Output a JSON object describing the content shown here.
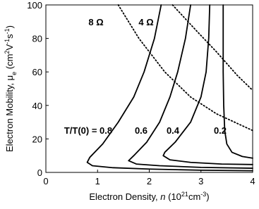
{
  "chart_data": {
    "type": "line",
    "x_label": [
      "Electron Density, ",
      "n",
      " (10",
      "21",
      "cm",
      "-3",
      ")"
    ],
    "y_label": [
      "Electron Mobility, ",
      "μ",
      "e",
      " (cm",
      "2",
      "V",
      "-1",
      "s",
      "-1",
      ")"
    ],
    "xlim": [
      0,
      4
    ],
    "ylim": [
      0,
      100
    ],
    "xticks": [
      0,
      1,
      2,
      3,
      4
    ],
    "yticks": [
      0,
      20,
      40,
      60,
      80,
      100
    ],
    "grid": false,
    "color": "#000000",
    "series": [
      {
        "name": "T/T(0) = 0.8",
        "style": "solid",
        "x": [
          2.23,
          2.1,
          1.9,
          1.7,
          1.4,
          1.1,
          0.85,
          0.8,
          0.9,
          1.3,
          2,
          3,
          4
        ],
        "values": [
          100,
          80,
          60,
          45,
          30,
          17,
          9,
          6,
          4,
          2.8,
          2,
          1.3,
          1
        ]
      },
      {
        "name": "0.6",
        "style": "solid",
        "x": [
          2.8,
          2.7,
          2.55,
          2.4,
          2.2,
          1.95,
          1.7,
          1.6,
          1.75,
          2.2,
          3,
          4
        ],
        "values": [
          100,
          80,
          60,
          45,
          30,
          18,
          10,
          7,
          5,
          4,
          3,
          2.5
        ]
      },
      {
        "name": "0.4",
        "style": "solid",
        "x": [
          3.17,
          3.15,
          3.1,
          3.0,
          2.8,
          2.5,
          2.3,
          2.27,
          2.4,
          2.8,
          3.4,
          4
        ],
        "values": [
          100,
          80,
          60,
          45,
          30,
          18,
          12,
          10,
          7.5,
          6,
          5,
          4.7
        ]
      },
      {
        "name": "0.2",
        "style": "solid",
        "x": [
          3.43,
          3.43,
          3.44,
          3.46,
          3.5,
          3.6,
          3.8,
          4
        ],
        "values": [
          100,
          60,
          40,
          25,
          17,
          12,
          9.5,
          8.5
        ]
      },
      {
        "name": "8 Ω",
        "style": "dotted",
        "x": [
          1.4,
          1.8,
          2.3,
          2.8,
          3.3,
          4
        ],
        "values": [
          100,
          80,
          60,
          45,
          35,
          25
        ]
      },
      {
        "name": "4 Ω",
        "style": "dotted",
        "x": [
          2.45,
          2.9,
          3.3,
          3.7,
          4
        ],
        "values": [
          100,
          85,
          72,
          58,
          49
        ]
      }
    ]
  }
}
